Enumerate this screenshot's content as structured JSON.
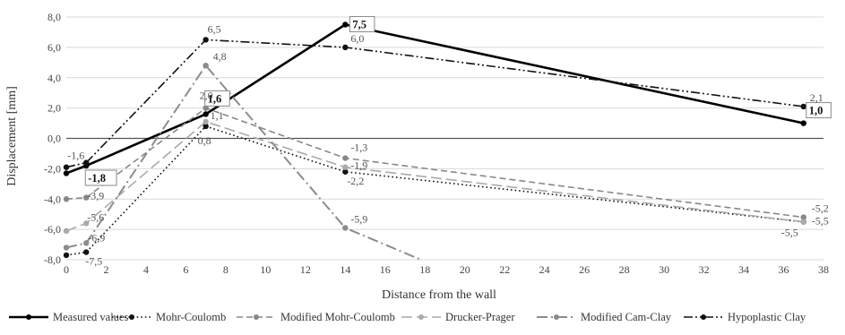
{
  "chart_data": {
    "type": "line",
    "title": "",
    "xlabel": "Distance from the wall",
    "ylabel": "Displacement [mm]",
    "xlim": [
      0,
      38
    ],
    "ylim": [
      -8,
      8
    ],
    "xticks": [
      "0",
      "2",
      "4",
      "6",
      "8",
      "10",
      "12",
      "14",
      "16",
      "18",
      "20",
      "22",
      "24",
      "26",
      "28",
      "30",
      "32",
      "34",
      "36",
      "38"
    ],
    "yticks": [
      "8,0",
      "6,0",
      "4,0",
      "2,0",
      "0,0",
      "-2,0",
      "-4,0",
      "-6,0",
      "-8,0"
    ],
    "grid": "horizontal",
    "legend": "bottom",
    "series": [
      {
        "name": "Measured values",
        "color": "#000000",
        "dash": "solid",
        "width": 2.6,
        "points": [
          [
            0,
            -2.3
          ],
          [
            1,
            -1.8
          ],
          [
            7,
            1.6
          ],
          [
            14,
            7.5
          ],
          [
            37,
            1.0
          ]
        ],
        "labels": [
          {
            "x": 1,
            "y": -1.8,
            "text": "-1,8",
            "boxed": true
          },
          {
            "x": 7,
            "y": 1.6,
            "text": "1,6",
            "boxed": true
          },
          {
            "x": 14,
            "y": 7.5,
            "text": "7,5",
            "boxed": true
          },
          {
            "x": 37,
            "y": 1.0,
            "text": "1,0",
            "boxed": true
          }
        ]
      },
      {
        "name": "Mohr-Coulomb",
        "color": "#111111",
        "dash": "dot",
        "width": 1.6,
        "points": [
          [
            0,
            -7.7
          ],
          [
            1,
            -7.5
          ],
          [
            7,
            0.8
          ],
          [
            14,
            -2.2
          ],
          [
            37,
            -5.5
          ]
        ],
        "labels": [
          {
            "x": 1,
            "y": -7.5,
            "text": "-7,5"
          },
          {
            "x": 7,
            "y": 0.8,
            "text": "0,8"
          },
          {
            "x": 14,
            "y": -2.2,
            "text": "-2,2"
          },
          {
            "x": 37,
            "y": -5.5,
            "text": "-5,5"
          }
        ]
      },
      {
        "name": "Modified Mohr-Coulomb",
        "color": "#888888",
        "dash": "dash",
        "width": 1.6,
        "points": [
          [
            0,
            -4.0
          ],
          [
            1,
            -3.9
          ],
          [
            7,
            2.0
          ],
          [
            14,
            -1.3
          ],
          [
            37,
            -5.2
          ]
        ],
        "labels": [
          {
            "x": 1,
            "y": -3.9,
            "text": "-3,9"
          },
          {
            "x": 7,
            "y": 2.0,
            "text": "2,0"
          },
          {
            "x": 14,
            "y": -1.3,
            "text": "-1,3"
          },
          {
            "x": 37,
            "y": -5.2,
            "text": "-5,2"
          }
        ]
      },
      {
        "name": "Drucker-Prager",
        "color": "#aaaaaa",
        "dash": "longdash",
        "width": 1.6,
        "points": [
          [
            0,
            -6.1
          ],
          [
            1,
            -5.6
          ],
          [
            7,
            1.1
          ],
          [
            14,
            -1.9
          ],
          [
            37,
            -5.5
          ]
        ],
        "labels": [
          {
            "x": 1,
            "y": -5.6,
            "text": "-5,6"
          },
          {
            "x": 7,
            "y": 1.1,
            "text": "1,1"
          },
          {
            "x": 14,
            "y": -1.9,
            "text": "-1,9"
          },
          {
            "x": 37,
            "y": -5.5,
            "text": "-5,5"
          }
        ]
      },
      {
        "name": "Modified Cam-Clay",
        "color": "#8c8c8c",
        "dash": "dashdot",
        "width": 2.0,
        "points": [
          [
            0,
            -7.2
          ],
          [
            1,
            -6.9
          ],
          [
            7,
            4.8
          ],
          [
            14,
            -5.9
          ],
          [
            17.8,
            -8.0
          ]
        ],
        "labels": [
          {
            "x": 1,
            "y": -6.9,
            "text": "-6,9"
          },
          {
            "x": 7,
            "y": 4.8,
            "text": "4,8"
          },
          {
            "x": 14,
            "y": -5.9,
            "text": "-5,9"
          }
        ]
      },
      {
        "name": "Hypoplastic Clay",
        "color": "#111111",
        "dash": "dashdotdot",
        "width": 1.6,
        "points": [
          [
            0,
            -1.9
          ],
          [
            1,
            -1.6
          ],
          [
            7,
            6.5
          ],
          [
            14,
            6.0
          ],
          [
            37,
            2.1
          ]
        ],
        "labels": [
          {
            "x": 1,
            "y": -1.6,
            "text": "-1,6"
          },
          {
            "x": 7,
            "y": 6.5,
            "text": "6,5"
          },
          {
            "x": 14,
            "y": 6.0,
            "text": "6,0"
          },
          {
            "x": 37,
            "y": 2.1,
            "text": "2,1"
          }
        ]
      }
    ]
  }
}
